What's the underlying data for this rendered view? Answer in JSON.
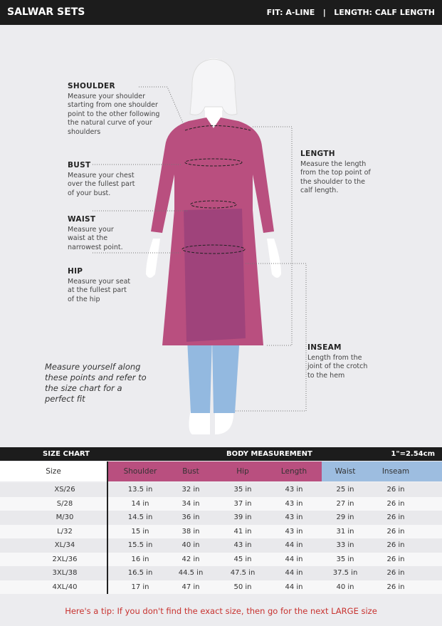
{
  "header": {
    "title": "SALWAR SETS",
    "fit": "FIT: A-LINE",
    "separator": "|",
    "length": "LENGTH: CALF LENGTH"
  },
  "guide": {
    "shoulder": {
      "title": "SHOULDER",
      "text": "Measure your shoulder starting from one shoulder point to the other following the natural curve of your shoulders"
    },
    "bust": {
      "title": "BUST",
      "text": "Measure your chest over the fullest part of your bust."
    },
    "waist": {
      "title": "WAIST",
      "text": "Measure your waist at the narrowest point."
    },
    "hip": {
      "title": "HIP",
      "text": "Measure your seat at the fullest part of the hip"
    },
    "length": {
      "title": "LENGTH",
      "text": "Measure the length from the top point of the shoulder to the calf length."
    },
    "inseam": {
      "title": "INSEAM",
      "text": "Length from the joint of the crotch to the hem"
    },
    "note": "Measure yourself along these points and refer to the size chart for a perfect fit"
  },
  "colors": {
    "kurta": "#b94f7f",
    "salwar": "#93b9e0",
    "pink_header": "#b94f7f",
    "blue_header": "#9dbde0",
    "tip": "#c8322f"
  },
  "table": {
    "bar": {
      "left": "SIZE CHART",
      "center": "BODY MEASUREMENT",
      "right": "1\"=2.54cm"
    },
    "columns": [
      "Size",
      "Shoulder",
      "Bust",
      "Hip",
      "Length",
      "Waist",
      "Inseam"
    ],
    "rows": [
      [
        "XS/26",
        "13.5 in",
        "32 in",
        "35 in",
        "43 in",
        "25 in",
        "26 in"
      ],
      [
        "S/28",
        "14 in",
        "34 in",
        "37 in",
        "43 in",
        "27 in",
        "26 in"
      ],
      [
        "M/30",
        "14.5 in",
        "36 in",
        "39 in",
        "43 in",
        "29 in",
        "26 in"
      ],
      [
        "L/32",
        "15 in",
        "38 in",
        "41 in",
        "43 in",
        "31 in",
        "26 in"
      ],
      [
        "XL/34",
        "15.5 in",
        "40 in",
        "43 in",
        "44 in",
        "33 in",
        "26 in"
      ],
      [
        "2XL/36",
        "16 in",
        "42 in",
        "45 in",
        "44 in",
        "35 in",
        "26 in"
      ],
      [
        "3XL/38",
        "16.5 in",
        "44.5 in",
        "47.5 in",
        "44 in",
        "37.5 in",
        "26 in"
      ],
      [
        "4XL/40",
        "17 in",
        "47 in",
        "50 in",
        "44 in",
        "40 in",
        "26 in"
      ]
    ]
  },
  "tip": "Here's a tip: If you don't find the exact size, then go for the next LARGE size"
}
